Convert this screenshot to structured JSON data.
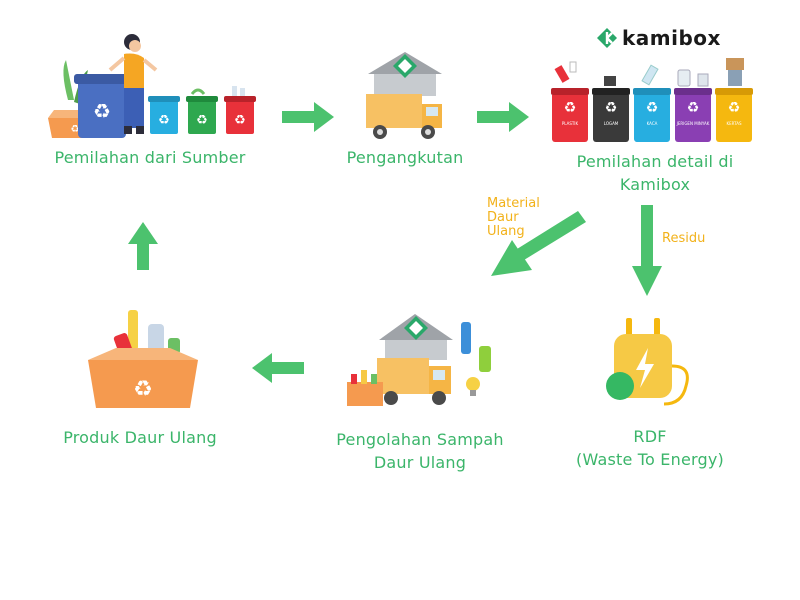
{
  "brand": {
    "name": "kamibox",
    "logo_color": "#2aa86a"
  },
  "steps": {
    "source": "Pemilahan dari Sumber",
    "transport": "Pengangkutan",
    "detail_line1": "Pemilahan detail di",
    "detail_line2": "Kamibox",
    "processing_line1": "Pengolahan Sampah",
    "processing_line2": "Daur Ulang",
    "product": "Produk Daur Ulang",
    "rdf_line1": "RDF",
    "rdf_line2": "(Waste To Energy)"
  },
  "flow_labels": {
    "material_line1": "Material",
    "material_line2": "Daur",
    "material_line3": "Ulang",
    "residu": "Residu"
  },
  "bins": [
    {
      "label": "PLASTIK",
      "color": "#e8313a"
    },
    {
      "label": "LOGAM",
      "color": "#3a3a3a"
    },
    {
      "label": "KACA",
      "color": "#27aee0"
    },
    {
      "label": "JERIGEN MINYAK",
      "color": "#8a3fb3"
    },
    {
      "label": "KERTAS",
      "color": "#f5b80f"
    }
  ],
  "colors": {
    "arrow": "#4cc26e",
    "text": "#3bb56a",
    "accent": "#f2b21b",
    "box": "#f59a4f"
  }
}
